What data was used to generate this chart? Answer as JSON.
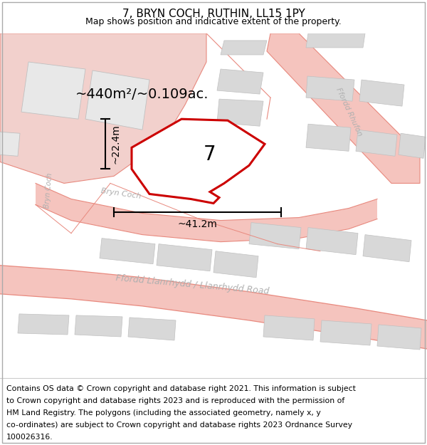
{
  "title": "7, BRYN COCH, RUTHIN, LL15 1PY",
  "subtitle": "Map shows position and indicative extent of the property.",
  "area_label": "~440m²/~0.109ac.",
  "width_label": "~41.2m",
  "height_label": "~22.4m",
  "plot_number": "7",
  "footer_lines": [
    "Contains OS data © Crown copyright and database right 2021. This information is subject",
    "to Crown copyright and database rights 2023 and is reproduced with the permission of",
    "HM Land Registry. The polygons (including the associated geometry, namely x, y",
    "co-ordinates) are subject to Crown copyright and database rights 2023 Ordnance Survey",
    "100026316."
  ],
  "bg_color": "#ffffff",
  "road_fill": "#f5c4be",
  "road_line": "#e8897e",
  "bld_fill": "#d8d8d8",
  "bld_edge": "#c0c0c0",
  "pink_fill": "#f2d0cc",
  "plot_edge": "#cc0000",
  "plot_fill": "#ffffff",
  "road_text_color": "#b0b0b0",
  "title_fontsize": 11,
  "subtitle_fontsize": 9,
  "area_fontsize": 14,
  "dim_fontsize": 10,
  "plot_num_fontsize": 20,
  "footer_fontsize": 7.8,
  "road_linewidth": 1.0,
  "plot_linewidth": 2.2
}
